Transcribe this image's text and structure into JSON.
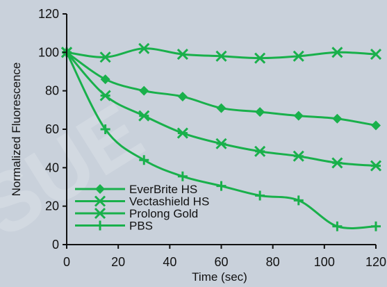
{
  "chart_data": {
    "type": "line",
    "title": "",
    "xlabel": "Time (sec)",
    "ylabel": "Normalized Fluorescence",
    "xlim": [
      0,
      120
    ],
    "ylim": [
      0,
      120
    ],
    "xticks": [
      0,
      20,
      40,
      60,
      80,
      100,
      120
    ],
    "yticks": [
      0,
      20,
      40,
      60,
      80,
      100,
      120
    ],
    "grid": false,
    "legend_position": "bottom-left",
    "line_color": "#19b04b",
    "series": [
      {
        "name": "EverBrite HS",
        "marker": "diamond",
        "x": [
          0,
          15,
          30,
          45,
          60,
          75,
          90,
          105,
          120
        ],
        "y": [
          100,
          86,
          80,
          77,
          71,
          69,
          67,
          65.5,
          62
        ]
      },
      {
        "name": "Vectashield HS",
        "marker": "x",
        "x": [
          0,
          15,
          30,
          45,
          60,
          75,
          90,
          105,
          120
        ],
        "y": [
          100,
          97.5,
          102,
          99,
          98,
          97,
          98,
          100,
          99
        ]
      },
      {
        "name": "Prolong Gold",
        "marker": "star",
        "x": [
          0,
          15,
          30,
          45,
          60,
          75,
          90,
          105,
          120
        ],
        "y": [
          100,
          77.5,
          67,
          58,
          52.5,
          48.5,
          46,
          42.5,
          41
        ]
      },
      {
        "name": "PBS",
        "marker": "plus",
        "x": [
          0,
          15,
          30,
          45,
          60,
          75,
          90,
          105,
          120
        ],
        "y": [
          100,
          60,
          44,
          35.5,
          30.5,
          25.5,
          23,
          9.5,
          9.5
        ]
      }
    ]
  }
}
